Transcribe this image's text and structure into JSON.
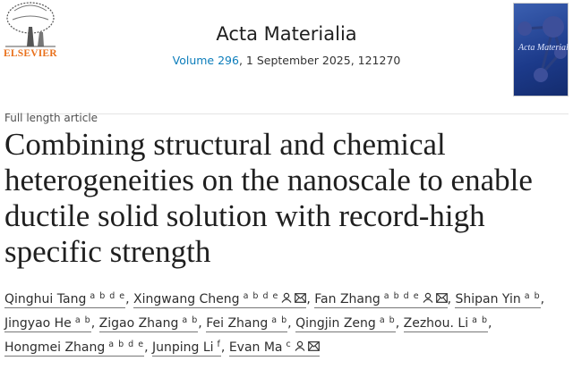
{
  "publisher": {
    "name": "ELSEVIER",
    "color": "#e9711c"
  },
  "journal": {
    "title": "Acta Materialia",
    "volume_link": "Volume 296",
    "issue_rest": ", 1 September 2025, 121270",
    "link_color": "#0c7dbb",
    "cover_text": "Acta Materialia"
  },
  "article": {
    "type": "Full length article",
    "title": "Combining structural and chemical heterogeneities on the nanoscale to enable ductile solid solution with record-high specific strength"
  },
  "authors": [
    {
      "name": "Qinghui Tang",
      "aff": "a b d e",
      "corresponding": false
    },
    {
      "name": "Xingwang Cheng",
      "aff": "a b d e",
      "corresponding": true
    },
    {
      "name": "Fan Zhang",
      "aff": "a b d e",
      "corresponding": true
    },
    {
      "name": "Shipan Yin",
      "aff": "a b",
      "corresponding": false
    },
    {
      "name": "Jingyao He",
      "aff": "a b",
      "corresponding": false
    },
    {
      "name": "Zigao Zhang",
      "aff": "a b",
      "corresponding": false
    },
    {
      "name": "Fei Zhang",
      "aff": "a b",
      "corresponding": false
    },
    {
      "name": "Qingjin Zeng",
      "aff": "a b",
      "corresponding": false
    },
    {
      "name": "Zezhou. Li",
      "aff": "a b",
      "corresponding": false
    },
    {
      "name": "Hongmei Zhang",
      "aff": "a b d e",
      "corresponding": false
    },
    {
      "name": "Junping Li",
      "aff": "f",
      "corresponding": false
    },
    {
      "name": "Evan Ma",
      "aff": "c",
      "corresponding": true
    }
  ],
  "icons": {
    "person": "person-icon",
    "mail": "envelope-icon"
  }
}
